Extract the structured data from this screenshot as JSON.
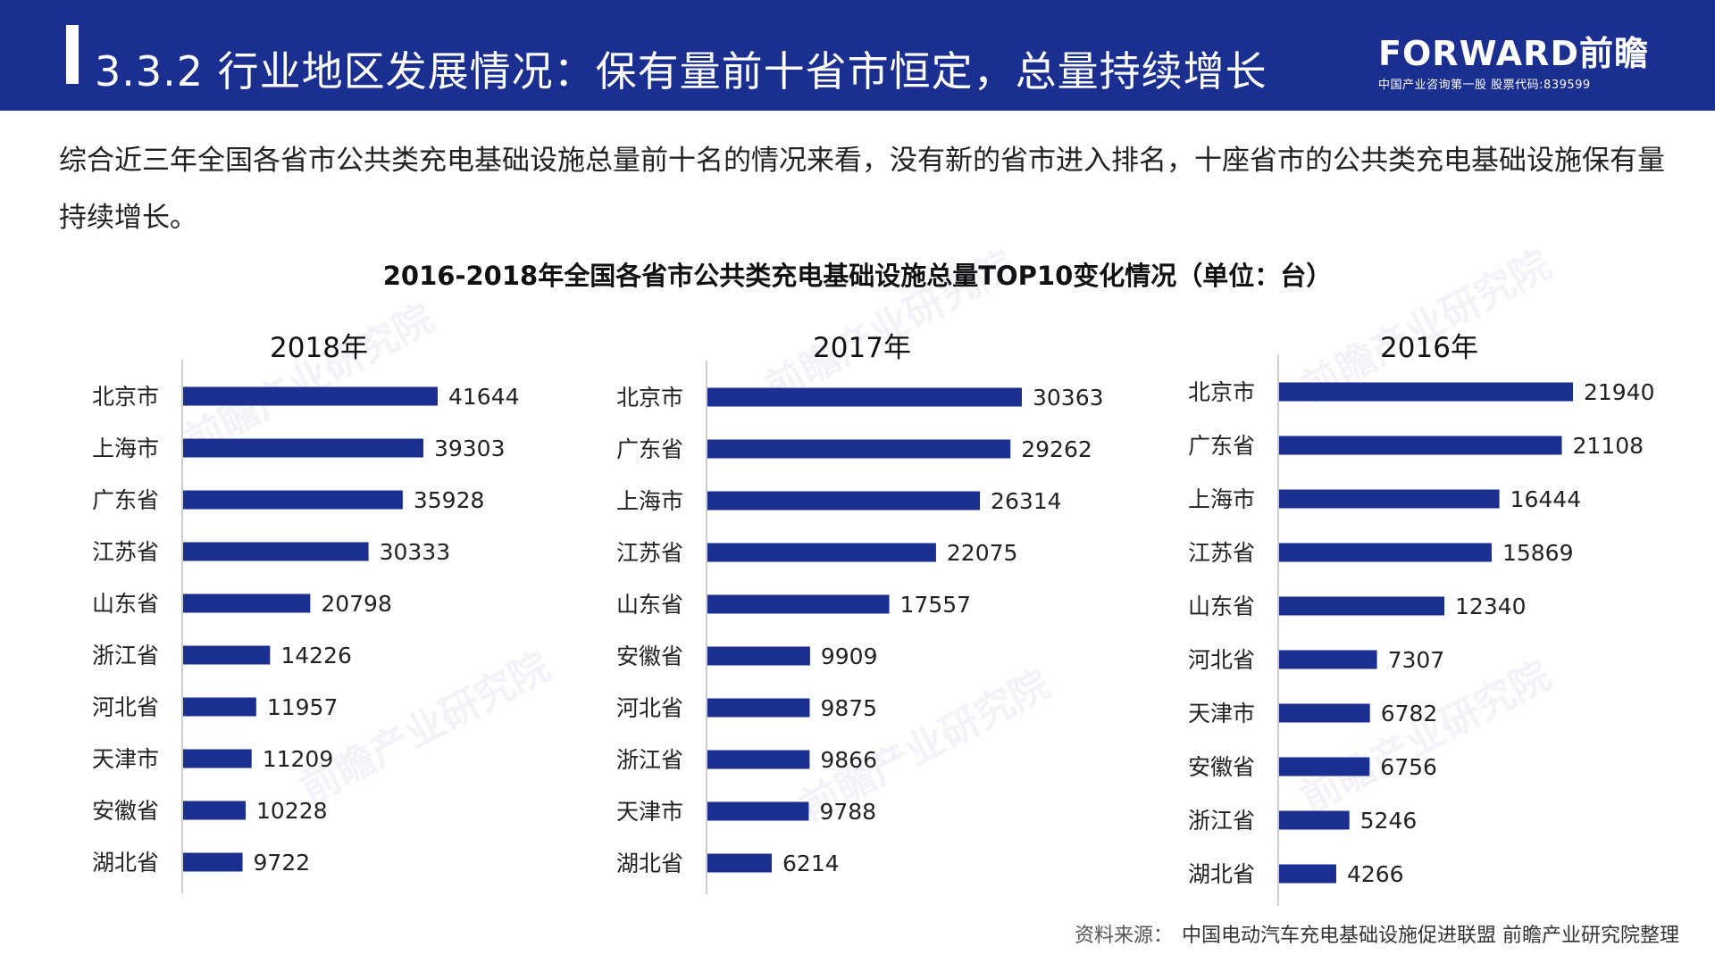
{
  "header": {
    "title": "3.3.2 行业地区发展情况：保有量前十省市恒定，总量持续增长",
    "logo_text": "FORWARD前瞻",
    "logo_sub": "中国产业咨询第一股 股票代码:839599"
  },
  "intro_text": "综合近三年全国各省市公共类充电基础设施总量前十名的情况来看，没有新的省市进入排名，十座省市的公共类充电基础设施保有量持续增长。",
  "chart_title": "2016-2018年全国各省市公共类充电基础设施总量TOP10变化情况（单位：台）",
  "watermark_text": "前瞻产业研究院",
  "source": {
    "label": "资料来源：",
    "text": "中国电动汽车充电基础设施促进联盟 前瞻产业研究院整理"
  },
  "colors": {
    "header_bg": "#1a2f8f",
    "bar": "#1a2f8f",
    "axis": "#bbbbbb"
  },
  "chart_data": [
    {
      "type": "bar",
      "orientation": "horizontal",
      "title": "2018年",
      "categories": [
        "北京市",
        "上海市",
        "广东省",
        "江苏省",
        "山东省",
        "浙江省",
        "河北省",
        "天津市",
        "安徽省",
        "湖北省"
      ],
      "values": [
        41644,
        39303,
        35928,
        30333,
        20798,
        14226,
        11957,
        11209,
        10228,
        9722
      ]
    },
    {
      "type": "bar",
      "orientation": "horizontal",
      "title": "2017年",
      "categories": [
        "北京市",
        "广东省",
        "上海市",
        "江苏省",
        "山东省",
        "安徽省",
        "河北省",
        "浙江省",
        "天津市",
        "湖北省"
      ],
      "values": [
        30363,
        29262,
        26314,
        22075,
        17557,
        9909,
        9875,
        9866,
        9788,
        6214
      ]
    },
    {
      "type": "bar",
      "orientation": "horizontal",
      "title": "2016年",
      "categories": [
        "北京市",
        "广东省",
        "上海市",
        "江苏省",
        "山东省",
        "河北省",
        "天津市",
        "安徽省",
        "浙江省",
        "湖北省"
      ],
      "values": [
        21940,
        21108,
        16444,
        15869,
        12340,
        7307,
        6782,
        6756,
        5246,
        4266
      ]
    }
  ]
}
